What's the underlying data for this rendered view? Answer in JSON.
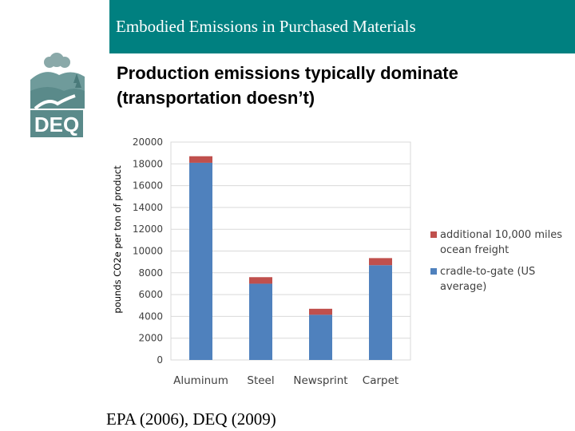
{
  "header": {
    "title": "Embodied Emissions in Purchased Materials",
    "accent_color": "#008080"
  },
  "logo": {
    "text": "DEQ",
    "color": "#5a8a8a",
    "icon": "deq-landscape-logo"
  },
  "subtitle": {
    "line1": "Production emissions typically dominate",
    "line2": "(transportation doesn’t)"
  },
  "citation": "EPA (2006), DEQ (2009)",
  "chart_data": {
    "type": "bar",
    "stacked": true,
    "categories": [
      "Aluminum",
      "Steel",
      "Newsprint",
      "Carpet"
    ],
    "series": [
      {
        "name": "cradle-to-gate (US average)",
        "color": "#4f81bd",
        "values": [
          18100,
          7000,
          4150,
          8700
        ]
      },
      {
        "name": "additional 10,000 miles ocean freight",
        "color": "#c0504d",
        "values": [
          600,
          600,
          550,
          650
        ]
      }
    ],
    "legend": [
      {
        "lines": [
          "additional 10,000 miles",
          "ocean freight"
        ],
        "color": "#c0504d"
      },
      {
        "lines": [
          "cradle-to-gate (US",
          "average)"
        ],
        "color": "#4f81bd"
      }
    ],
    "ylabel": "pounds CO2e per ton of product",
    "ylim": [
      0,
      20000
    ],
    "yticks": [
      0,
      2000,
      4000,
      6000,
      8000,
      10000,
      12000,
      14000,
      16000,
      18000,
      20000
    ],
    "grid": true,
    "legend_position": "right"
  }
}
